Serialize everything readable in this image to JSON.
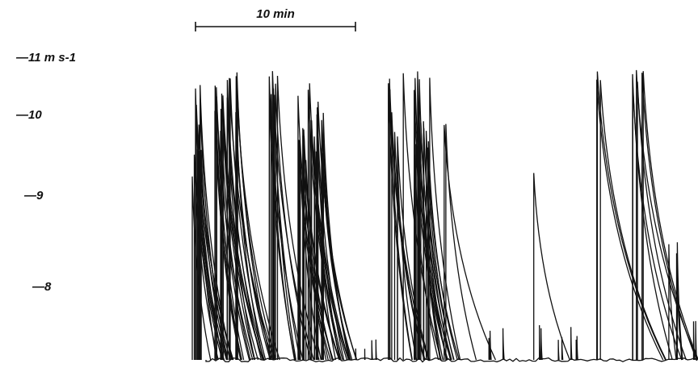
{
  "scale_bar": {
    "label": "10 min"
  },
  "axis_labels": [
    "—11 m s-1",
    "—10",
    "—9",
    "—8"
  ]
}
